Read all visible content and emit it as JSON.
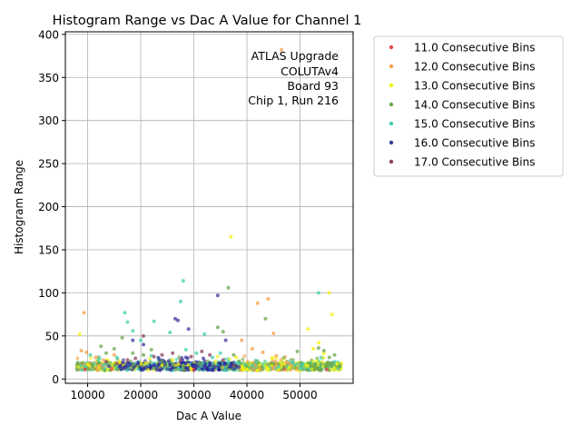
{
  "chart_data": {
    "type": "scatter",
    "title": "Histogram Range vs Dac A Value for Channel 1",
    "xlabel": "Dac A Value",
    "ylabel": "Histogram Range",
    "xlim": [
      5800,
      60000
    ],
    "ylim": [
      -5,
      403
    ],
    "xticks": [
      10000,
      20000,
      30000,
      40000,
      50000
    ],
    "yticks": [
      0,
      50,
      100,
      150,
      200,
      250,
      300,
      350,
      400
    ],
    "xtick_labels": [
      "10000",
      "20000",
      "30000",
      "40000",
      "50000"
    ],
    "ytick_labels": [
      "0",
      "50",
      "100",
      "150",
      "200",
      "250",
      "300",
      "350",
      "400"
    ],
    "grid": true,
    "legend_position": "outside-right",
    "annotation": [
      "ATLAS Upgrade",
      "COLUTAv4",
      "Board 93",
      "Chip 1, Run 216"
    ],
    "series": [
      {
        "name": "11.0 Consecutive Bins",
        "color": "#e8474a",
        "points": [
          [
            9500,
            11
          ],
          [
            14500,
            12
          ],
          [
            30000,
            11
          ],
          [
            47000,
            12
          ],
          [
            55000,
            11
          ]
        ]
      },
      {
        "name": "12.0 Consecutive Bins",
        "color": "#f5a04a",
        "points": [
          [
            8800,
            33
          ],
          [
            9300,
            77
          ],
          [
            9800,
            31
          ],
          [
            11500,
            25
          ],
          [
            13000,
            22
          ],
          [
            15000,
            28
          ],
          [
            39000,
            45
          ],
          [
            41000,
            35
          ],
          [
            42000,
            88
          ],
          [
            43000,
            31
          ],
          [
            44000,
            93
          ],
          [
            45000,
            53
          ],
          [
            45500,
            27
          ],
          [
            46500,
            382
          ],
          [
            47500,
            20
          ],
          [
            48000,
            18
          ],
          [
            42500,
            12
          ],
          [
            41500,
            16
          ]
        ]
      },
      {
        "name": "13.0 Consecutive Bins",
        "color": "#f2f20f",
        "points": [
          [
            8500,
            52
          ],
          [
            10000,
            17
          ],
          [
            12000,
            22
          ],
          [
            14000,
            16
          ],
          [
            16000,
            20
          ],
          [
            20000,
            18
          ],
          [
            24000,
            16
          ],
          [
            26000,
            22
          ],
          [
            37000,
            165
          ],
          [
            38000,
            25
          ],
          [
            40000,
            12
          ],
          [
            42000,
            10
          ],
          [
            44000,
            11
          ],
          [
            46000,
            12
          ],
          [
            48000,
            13
          ],
          [
            50000,
            10
          ],
          [
            51500,
            58
          ],
          [
            52500,
            35
          ],
          [
            53500,
            42
          ],
          [
            54500,
            30
          ],
          [
            55500,
            100
          ],
          [
            56000,
            75
          ],
          [
            57000,
            18
          ]
        ]
      },
      {
        "name": "14.0 Consecutive Bins",
        "color": "#6aa84f",
        "points": [
          [
            11000,
            15
          ],
          [
            12500,
            38
          ],
          [
            13500,
            30
          ],
          [
            15000,
            35
          ],
          [
            16500,
            48
          ],
          [
            18500,
            30
          ],
          [
            20500,
            28
          ],
          [
            22000,
            34
          ],
          [
            24000,
            20
          ],
          [
            28000,
            16
          ],
          [
            31000,
            18
          ],
          [
            34500,
            60
          ],
          [
            35500,
            55
          ],
          [
            36500,
            106
          ],
          [
            37500,
            28
          ],
          [
            38500,
            20
          ],
          [
            40000,
            15
          ],
          [
            43500,
            70
          ],
          [
            44500,
            18
          ],
          [
            47000,
            14
          ],
          [
            49500,
            32
          ],
          [
            52000,
            15
          ],
          [
            53500,
            36
          ],
          [
            54500,
            33
          ],
          [
            55500,
            25
          ],
          [
            56500,
            28
          ],
          [
            57500,
            15
          ]
        ]
      },
      {
        "name": "15.0 Consecutive Bins",
        "color": "#40d0b0",
        "points": [
          [
            10500,
            28
          ],
          [
            12000,
            22
          ],
          [
            13500,
            18
          ],
          [
            15500,
            25
          ],
          [
            17000,
            77
          ],
          [
            17500,
            66
          ],
          [
            18500,
            56
          ],
          [
            20000,
            45
          ],
          [
            22000,
            27
          ],
          [
            22500,
            67
          ],
          [
            25500,
            54
          ],
          [
            27500,
            90
          ],
          [
            28000,
            114
          ],
          [
            28500,
            34
          ],
          [
            30500,
            30
          ],
          [
            32000,
            52
          ],
          [
            33500,
            25
          ],
          [
            35000,
            30
          ],
          [
            36500,
            20
          ],
          [
            38500,
            18
          ],
          [
            41000,
            16
          ],
          [
            46000,
            14
          ],
          [
            50000,
            12
          ],
          [
            53500,
            100
          ],
          [
            56500,
            20
          ]
        ]
      },
      {
        "name": "16.0 Consecutive Bins",
        "color": "#3a3aa0",
        "points": [
          [
            14000,
            15
          ],
          [
            16000,
            14
          ],
          [
            18000,
            16
          ],
          [
            18500,
            45
          ],
          [
            19500,
            18
          ],
          [
            21000,
            14
          ],
          [
            22500,
            16
          ],
          [
            23500,
            22
          ],
          [
            24500,
            20
          ],
          [
            26500,
            70
          ],
          [
            27000,
            68
          ],
          [
            28500,
            18
          ],
          [
            29000,
            58
          ],
          [
            30500,
            16
          ],
          [
            32000,
            14
          ],
          [
            33000,
            16
          ],
          [
            34000,
            14
          ],
          [
            34500,
            97
          ],
          [
            36000,
            45
          ],
          [
            37000,
            15
          ],
          [
            38500,
            14
          ],
          [
            20500,
            40
          ],
          [
            25500,
            16
          ]
        ]
      },
      {
        "name": "17.0 Consecutive Bins",
        "color": "#8e4060",
        "points": [
          [
            13500,
            20
          ],
          [
            15500,
            18
          ],
          [
            17500,
            22
          ],
          [
            19000,
            24
          ],
          [
            20500,
            50
          ],
          [
            22500,
            26
          ],
          [
            24000,
            28
          ],
          [
            26000,
            30
          ],
          [
            27500,
            22
          ],
          [
            29500,
            26
          ],
          [
            31500,
            32
          ],
          [
            33000,
            28
          ],
          [
            35500,
            22
          ],
          [
            37500,
            16
          ]
        ]
      }
    ]
  }
}
